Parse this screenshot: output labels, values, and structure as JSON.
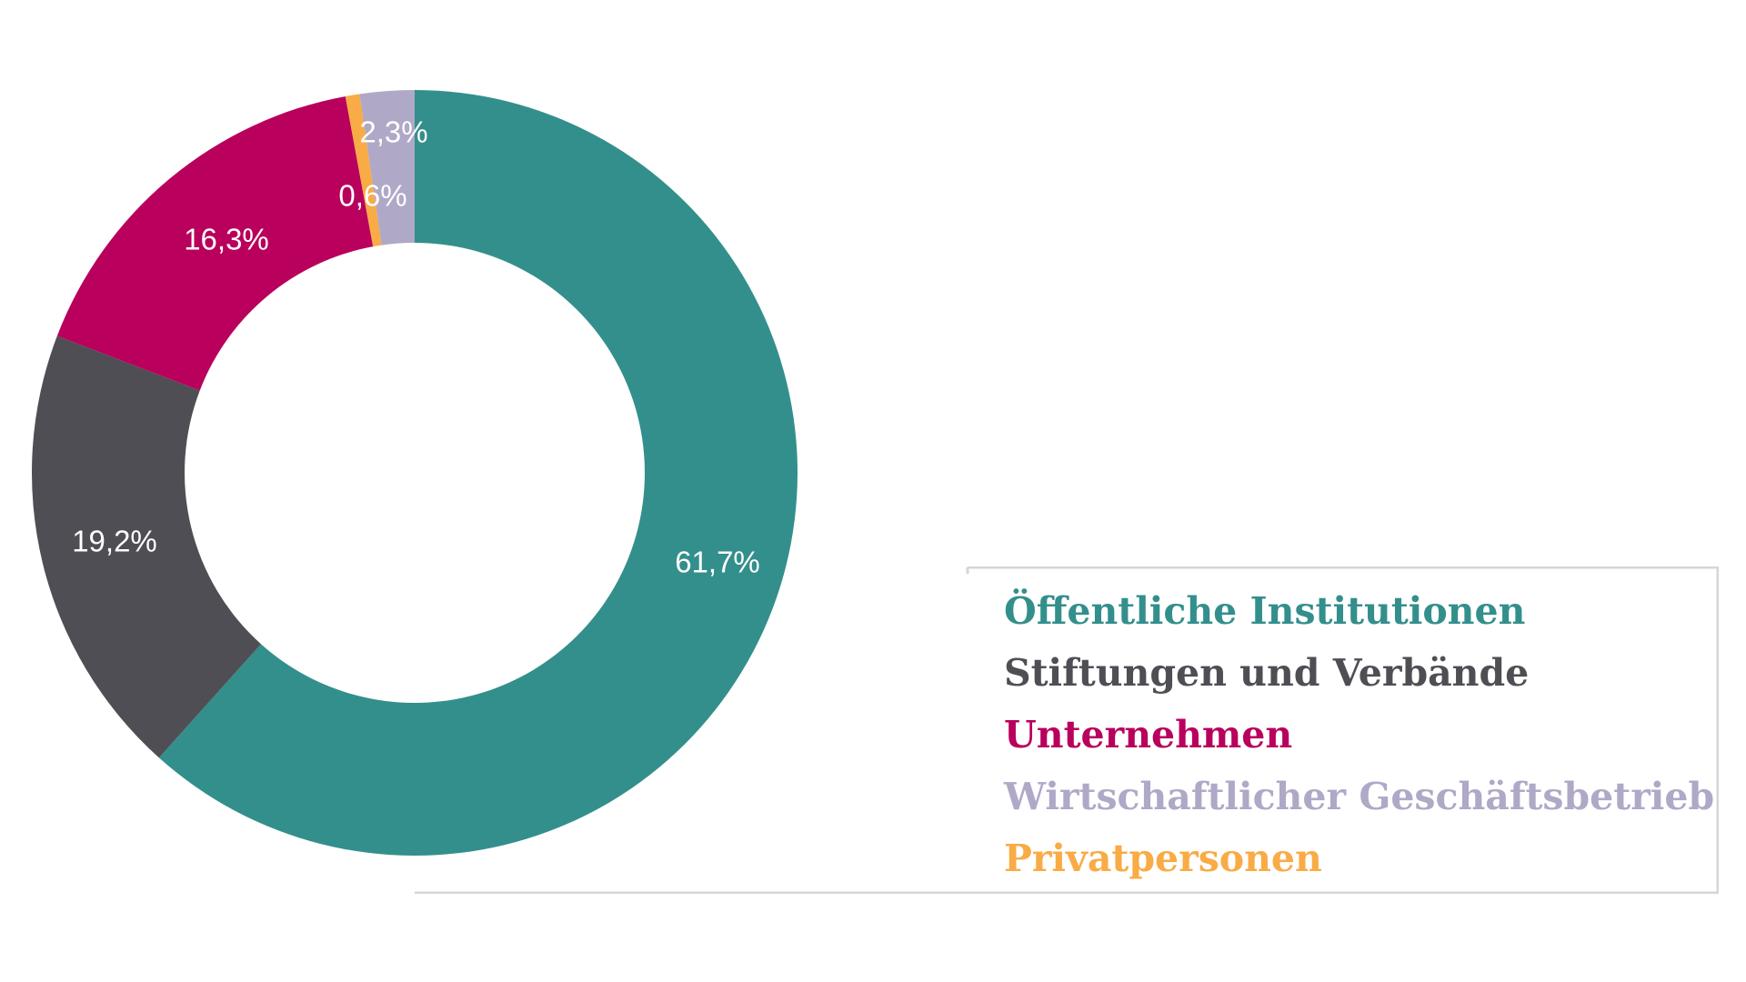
{
  "chart_data": {
    "type": "pie",
    "donut": true,
    "legend_position": "bottom-right",
    "slices": [
      {
        "name": "Öffentliche Institutionen",
        "value": 61.7,
        "label": "61,7%",
        "color": "#338f8c"
      },
      {
        "name": "Stiftungen und Verbände",
        "value": 19.2,
        "label": "19,2%",
        "color": "#4f4e54"
      },
      {
        "name": "Unternehmen",
        "value": 16.3,
        "label": "16,3%",
        "color": "#b8005c"
      },
      {
        "name": "Privatpersonen",
        "value": 0.6,
        "label": "0,6%",
        "color": "#f9ab45"
      },
      {
        "name": "Wirtschaftlicher Geschäftsbetrieb",
        "value": 2.3,
        "label": "2,3%",
        "color": "#b0a8c7"
      }
    ],
    "legend": [
      {
        "name": "Öffentliche Institutionen",
        "color": "#338f8c"
      },
      {
        "name": "Stiftungen und Verbände",
        "color": "#4f4e54"
      },
      {
        "name": "Unternehmen",
        "color": "#b8005c"
      },
      {
        "name": "Wirtschaftlicher Geschäftsbetrieb",
        "color": "#b0a8c7"
      },
      {
        "name": "Privatpersonen",
        "color": "#f9ab45"
      }
    ]
  }
}
